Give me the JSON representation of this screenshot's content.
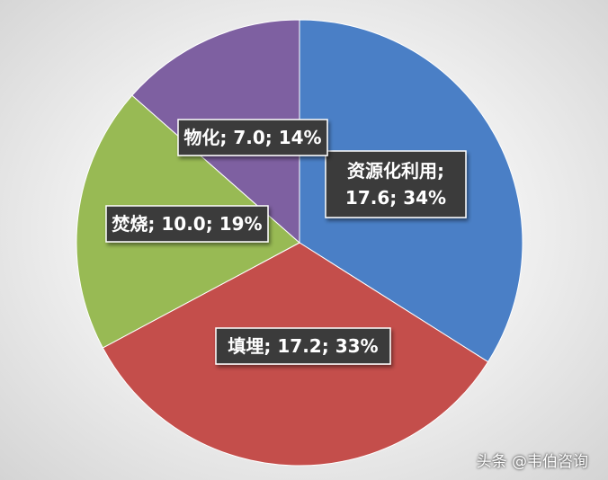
{
  "chart_data": {
    "type": "pie",
    "start_angle_deg": 0,
    "direction": "clockwise",
    "slices": [
      {
        "name": "资源化利用",
        "value": 17.6,
        "percent": "34%",
        "color": "#4a7fc6",
        "label_lines": [
          "资源化利用;",
          "17.6; 34%"
        ]
      },
      {
        "name": "填埋",
        "value": 17.2,
        "percent": "33%",
        "color": "#c44e4b",
        "label_lines": [
          "填埋; 17.2; 33%"
        ]
      },
      {
        "name": "焚烧",
        "value": 10.0,
        "percent": "19%",
        "color": "#98ba54",
        "label_lines": [
          "焚烧; 10.0; 19%"
        ]
      },
      {
        "name": "物化",
        "value": 7.0,
        "percent": "14%",
        "color": "#7e60a1",
        "label_lines": [
          "物化; 7.0; 14%"
        ]
      }
    ]
  },
  "watermark": "头条 @韦伯咨询"
}
